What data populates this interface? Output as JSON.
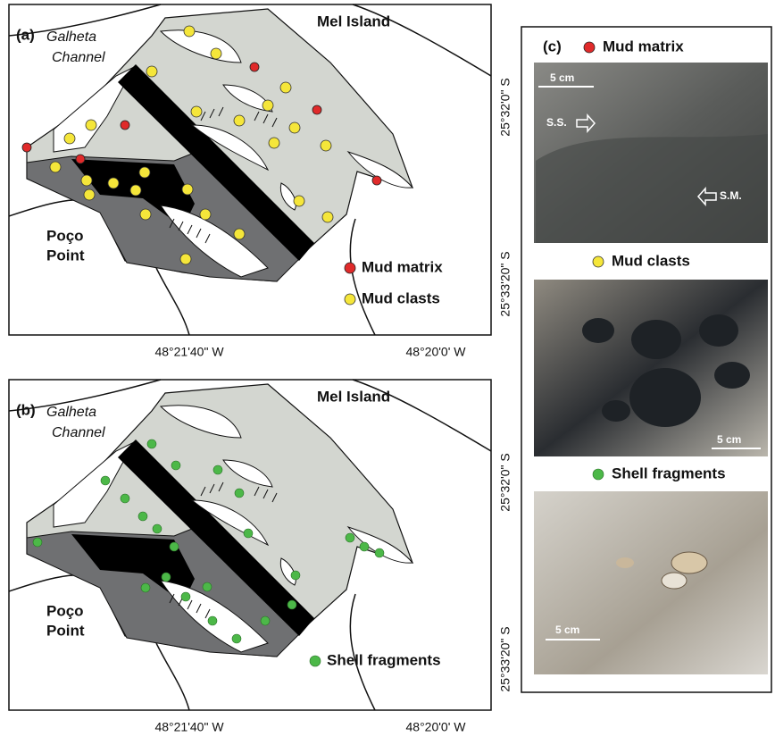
{
  "panel_a": {
    "label": "(a)",
    "channel_label": [
      "Galheta",
      "Channel"
    ],
    "island_label": "Mel Island",
    "point_label": [
      "Poço",
      "Point"
    ],
    "legend": [
      "Mud matrix",
      "Mud clasts"
    ],
    "x_labels": [
      "48°21'40\" W",
      "48°20'0' W"
    ],
    "y_labels": [
      "25°32'0\" S",
      "25°33'20\" S"
    ]
  },
  "panel_b": {
    "label": "(b)",
    "channel_label": [
      "Galheta",
      "Channel"
    ],
    "island_label": "Mel Island",
    "point_label": [
      "Poço",
      "Point"
    ],
    "legend": [
      "Shell fragments"
    ],
    "x_labels": [
      "48°21'40\" W",
      "48°20'0' W"
    ],
    "y_labels": [
      "25°32'0\" S",
      "25°33'20\" S"
    ]
  },
  "panel_c": {
    "label": "(c)",
    "sections": [
      {
        "title": "Mud matrix",
        "scale": "5 cm",
        "annotations": [
          "S.S.",
          "S.M."
        ]
      },
      {
        "title": "Mud clasts",
        "scale": "5 cm"
      },
      {
        "title": "Shell fragments",
        "scale": "5 cm"
      }
    ]
  }
}
